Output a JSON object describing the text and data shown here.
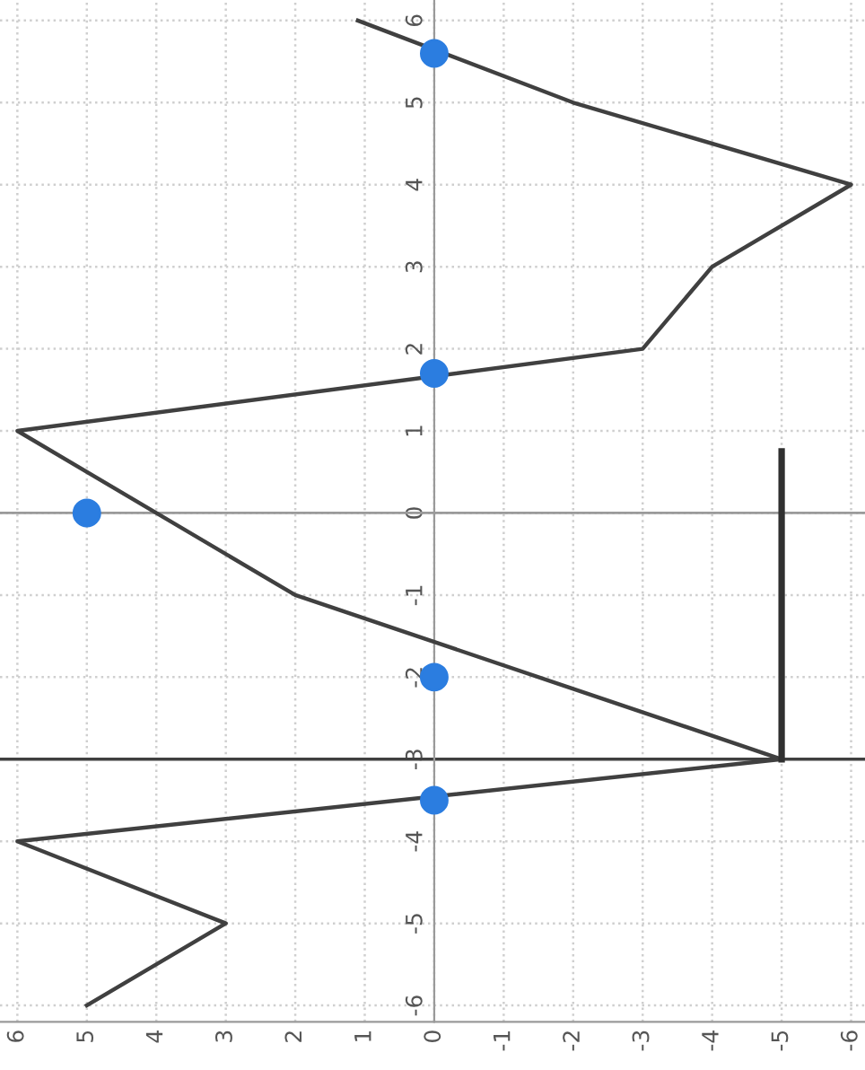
{
  "chart_data": {
    "type": "line",
    "xlim": [
      6.25,
      -6.2
    ],
    "ylim": [
      -6.2,
      6.25
    ],
    "xticks": [
      6,
      5,
      4,
      3,
      2,
      1,
      0,
      -1,
      -2,
      -3,
      -4,
      -5,
      -6
    ],
    "yticks": [
      -6,
      -5,
      -4,
      -3,
      -2,
      -1,
      0,
      1,
      2,
      3,
      4,
      5,
      6
    ],
    "grid": true,
    "legend": false,
    "series": [
      {
        "color": "#404040",
        "marker": "none",
        "x": [
          1.1,
          -2,
          -6,
          -4,
          -3,
          6,
          2,
          -5,
          6,
          3,
          5
        ],
        "values": [
          6,
          5,
          4,
          3,
          2,
          1,
          -1,
          -3,
          -4,
          -5,
          -6
        ]
      },
      {
        "color": "#303030",
        "marker": "none",
        "x": [
          -5,
          -5
        ],
        "values": [
          0.75,
          -3
        ]
      },
      {
        "type": "scatter",
        "color": "#2b7de0",
        "marker": "circle",
        "x": [
          0,
          0,
          5,
          0,
          0
        ],
        "values": [
          5.6,
          1.7,
          0,
          -2,
          -3.5
        ]
      }
    ],
    "ref_lines": [
      {
        "axis": "y",
        "value": -3,
        "color": "#404040"
      }
    ]
  }
}
